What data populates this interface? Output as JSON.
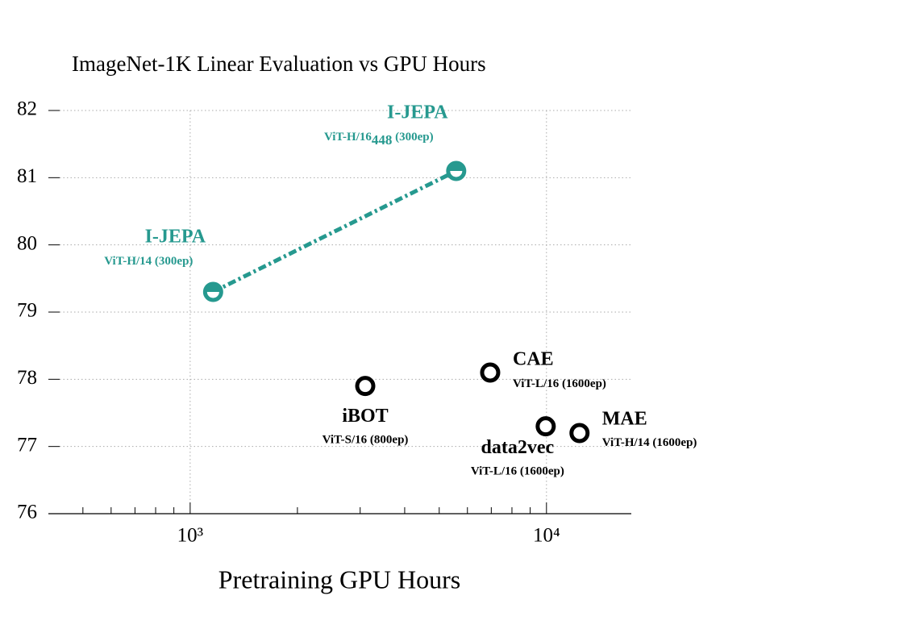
{
  "chart_data": {
    "type": "scatter",
    "title": "ImageNet-1K Linear Evaluation vs GPU Hours",
    "x_label": "Pretraining GPU Hours",
    "x_log": true,
    "xlim": [
      400,
      17300
    ],
    "xticks": [
      {
        "value": 1000,
        "label": "10³"
      },
      {
        "value": 10000,
        "label": "10⁴"
      }
    ],
    "xminorticks": [
      500,
      600,
      700,
      800,
      900,
      2000,
      3000,
      4000,
      5000,
      6000,
      7000,
      8000,
      9000
    ],
    "ylim": [
      76,
      82
    ],
    "yticks": [
      76,
      77,
      78,
      79,
      80,
      81,
      82
    ],
    "grid": true,
    "series": [
      {
        "name": "I-JEPA",
        "color": "#26998f",
        "connected": true,
        "x": [
          1160,
          5580
        ],
        "values": [
          79.3,
          81.1
        ],
        "details": [
          [
            "ViT-H/14 (300ep)"
          ],
          [
            "ViT-H/16",
            "448",
            " (300ep)"
          ]
        ]
      },
      {
        "names": [
          "iBOT",
          "CAE",
          "data2vec",
          "MAE"
        ],
        "color": "#000000",
        "connected": false,
        "x": [
          3100,
          6950,
          9950,
          12380
        ],
        "values": [
          77.9,
          78.1,
          77.3,
          77.2
        ],
        "details": [
          [
            "ViT-S/16 (800ep)"
          ],
          [
            "ViT-L/16 (1600ep)"
          ],
          [
            "ViT-L/16 (1600ep)"
          ],
          [
            "ViT-H/14 (1600ep)"
          ]
        ]
      }
    ]
  }
}
